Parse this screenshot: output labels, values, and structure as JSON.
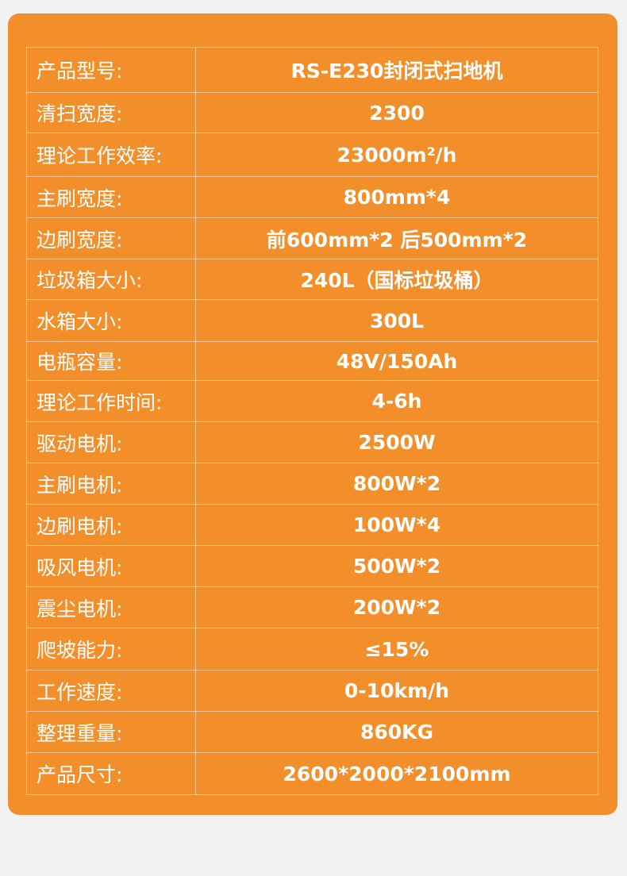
{
  "colors": {
    "background": "#f2f2f2",
    "card": "#f38f2b",
    "text": "#ffffff"
  },
  "rows": [
    {
      "label": "产品型号:",
      "value": "RS-E230封闭式扫地机"
    },
    {
      "label": "清扫宽度:",
      "value": "2300"
    },
    {
      "label": "理论工作效率:",
      "value": "23000m²/h"
    },
    {
      "label": "主刷宽度:",
      "value": "800mm*4"
    },
    {
      "label": "边刷宽度:",
      "value": "前600mm*2 后500mm*2"
    },
    {
      "label": "垃圾箱大小:",
      "value": "240L（国标垃圾桶）"
    },
    {
      "label": "水箱大小:",
      "value": "300L"
    },
    {
      "label": "电瓶容量:",
      "value": "48V/150Ah"
    },
    {
      "label": "理论工作时间:",
      "value": "4-6h"
    },
    {
      "label": "驱动电机:",
      "value": "2500W"
    },
    {
      "label": "主刷电机:",
      "value": "800W*2"
    },
    {
      "label": "边刷电机:",
      "value": "100W*4"
    },
    {
      "label": "吸风电机:",
      "value": "500W*2"
    },
    {
      "label": "震尘电机:",
      "value": "200W*2"
    },
    {
      "label": "爬坡能力:",
      "value": "≤15%"
    },
    {
      "label": "工作速度:",
      "value": "0-10km/h"
    },
    {
      "label": "整理重量:",
      "value": "860KG"
    },
    {
      "label": "产品尺寸:",
      "value": "2600*2000*2100mm"
    }
  ]
}
